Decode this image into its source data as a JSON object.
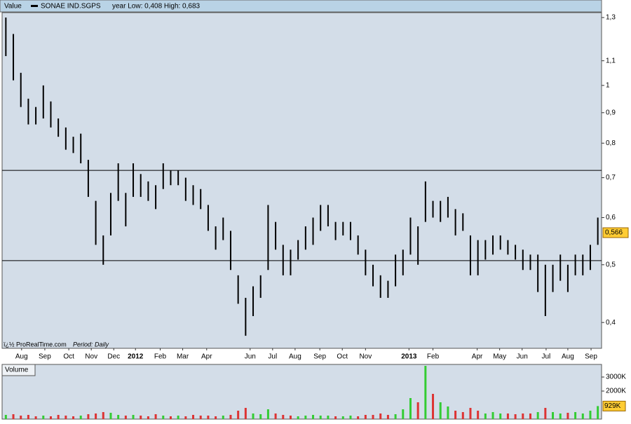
{
  "chart_data": [
    {
      "type": "hl-bar",
      "title": "Value",
      "name": "SONAE IND.SGPS",
      "subtitle": "year Low: 0,408 High: 0,683",
      "credit": "ï¿½ ProRealTime.com",
      "period": "Period: Daily",
      "color": "#000000",
      "log_scale": true,
      "x": [
        0,
        1,
        2,
        3,
        4,
        5,
        6,
        7,
        8,
        9,
        10,
        11,
        12,
        13,
        14,
        15,
        16,
        17,
        18,
        19,
        20,
        21,
        22,
        23,
        24,
        25,
        26,
        27,
        28,
        29,
        30,
        31,
        32,
        33,
        34,
        35,
        36,
        37,
        38,
        39,
        40,
        41,
        42,
        43,
        44,
        45,
        46,
        47,
        48,
        49,
        50,
        51,
        52,
        53,
        54,
        55,
        56,
        57,
        58,
        59,
        60,
        61,
        62,
        63,
        64,
        65,
        66,
        67,
        68,
        69,
        70,
        71,
        72,
        73,
        74,
        75,
        76,
        77,
        78,
        79
      ],
      "high": [
        1.3,
        1.22,
        1.05,
        0.95,
        0.92,
        1.0,
        0.94,
        0.88,
        0.85,
        0.82,
        0.83,
        0.75,
        0.64,
        0.56,
        0.66,
        0.74,
        0.66,
        0.74,
        0.71,
        0.69,
        0.68,
        0.74,
        0.72,
        0.72,
        0.7,
        0.68,
        0.67,
        0.63,
        0.58,
        0.6,
        0.57,
        0.48,
        0.44,
        0.46,
        0.48,
        0.63,
        0.59,
        0.54,
        0.53,
        0.55,
        0.58,
        0.6,
        0.63,
        0.63,
        0.59,
        0.59,
        0.59,
        0.56,
        0.53,
        0.5,
        0.48,
        0.47,
        0.52,
        0.53,
        0.6,
        0.58,
        0.69,
        0.64,
        0.64,
        0.65,
        0.62,
        0.61,
        0.56,
        0.55,
        0.55,
        0.56,
        0.56,
        0.55,
        0.54,
        0.53,
        0.52,
        0.52,
        0.5,
        0.5,
        0.52,
        0.5,
        0.52,
        0.52,
        0.54,
        0.6
      ],
      "low": [
        1.12,
        1.02,
        0.92,
        0.86,
        0.86,
        0.88,
        0.85,
        0.82,
        0.78,
        0.77,
        0.74,
        0.65,
        0.54,
        0.5,
        0.56,
        0.64,
        0.58,
        0.65,
        0.65,
        0.64,
        0.62,
        0.67,
        0.68,
        0.68,
        0.64,
        0.63,
        0.62,
        0.57,
        0.53,
        0.55,
        0.49,
        0.43,
        0.38,
        0.41,
        0.44,
        0.49,
        0.53,
        0.48,
        0.48,
        0.51,
        0.53,
        0.54,
        0.57,
        0.58,
        0.55,
        0.56,
        0.55,
        0.52,
        0.48,
        0.46,
        0.44,
        0.44,
        0.46,
        0.48,
        0.52,
        0.5,
        0.59,
        0.6,
        0.59,
        0.6,
        0.56,
        0.57,
        0.48,
        0.48,
        0.51,
        0.52,
        0.53,
        0.52,
        0.51,
        0.49,
        0.49,
        0.45,
        0.41,
        0.45,
        0.47,
        0.45,
        0.48,
        0.48,
        0.49,
        0.54
      ],
      "xlim": [
        -0.5,
        79.5
      ],
      "xticks": [
        {
          "value": 2.1,
          "label": "Aug"
        },
        {
          "value": 5.2,
          "label": "Sep"
        },
        {
          "value": 8.4,
          "label": "Oct"
        },
        {
          "value": 11.4,
          "label": "Nov"
        },
        {
          "value": 14.4,
          "label": "Dec"
        },
        {
          "value": 17.3,
          "label": "2012"
        },
        {
          "value": 20.6,
          "label": "Feb"
        },
        {
          "value": 23.6,
          "label": "Mar"
        },
        {
          "value": 26.8,
          "label": "Apr"
        },
        {
          "value": 32.6,
          "label": "Jun"
        },
        {
          "value": 35.6,
          "label": "Jul"
        },
        {
          "value": 38.6,
          "label": "Aug"
        },
        {
          "value": 41.9,
          "label": "Sep"
        },
        {
          "value": 44.9,
          "label": "Oct"
        },
        {
          "value": 48.0,
          "label": "Nov"
        },
        {
          "value": 53.8,
          "label": "2013"
        },
        {
          "value": 57.0,
          "label": "Feb"
        },
        {
          "value": 62.9,
          "label": "Apr"
        },
        {
          "value": 65.9,
          "label": "May"
        },
        {
          "value": 68.9,
          "label": "Jun"
        },
        {
          "value": 72.1,
          "label": "Jul"
        },
        {
          "value": 75.0,
          "label": "Aug"
        },
        {
          "value": 78.1,
          "label": "Sep"
        }
      ],
      "ylim": [
        0.362,
        1.325
      ],
      "yticks": [
        {
          "value": 0.4,
          "label": "0,4"
        },
        {
          "value": 0.5,
          "label": "0,5"
        },
        {
          "value": 0.6,
          "label": "0,6"
        },
        {
          "value": 0.7,
          "label": "0,7"
        },
        {
          "value": 0.8,
          "label": "0,8"
        },
        {
          "value": 0.9,
          "label": "0,9"
        },
        1,
        {
          "value": 1.1,
          "label": "1,1"
        },
        {
          "value": 1.3,
          "label": "1,3"
        }
      ],
      "hlines": [
        0.72,
        0.508
      ],
      "last": {
        "value": 0.566,
        "label": "0,566"
      }
    },
    {
      "type": "bar",
      "title": "Volume",
      "up_color": "#33cc33",
      "down_color": "#dd3333",
      "values": [
        300,
        350,
        250,
        300,
        200,
        250,
        200,
        300,
        250,
        200,
        250,
        350,
        400,
        500,
        450,
        300,
        250,
        300,
        250,
        200,
        350,
        250,
        200,
        250,
        200,
        300,
        250,
        250,
        200,
        250,
        300,
        600,
        800,
        400,
        350,
        700,
        400,
        300,
        250,
        200,
        250,
        300,
        250,
        250,
        200,
        200,
        250,
        200,
        300,
        300,
        400,
        300,
        350,
        700,
        1500,
        1200,
        3800,
        1800,
        1200,
        900,
        600,
        500,
        800,
        600,
        400,
        500,
        400,
        400,
        350,
        400,
        400,
        500,
        800,
        500,
        400,
        450,
        500,
        400,
        600,
        929
      ],
      "ylim": [
        0,
        3900
      ],
      "yticks": [
        {
          "value": 3000,
          "label": "3000K"
        },
        {
          "value": 2000,
          "label": "2000K"
        }
      ],
      "last": {
        "value": 929,
        "label": "929K"
      }
    }
  ]
}
